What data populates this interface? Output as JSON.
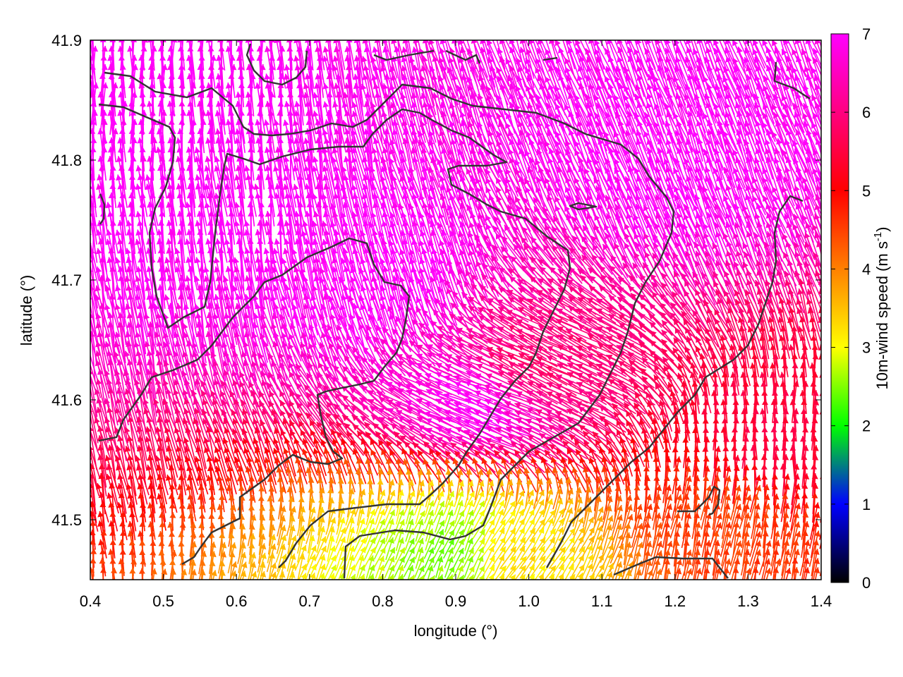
{
  "chart_data": {
    "type": "vector field",
    "xlabel": "longitude (°)",
    "ylabel": "latitude (°)",
    "colorbar_label": "10m-wind speed (m s",
    "colorbar_label_exp": "-1",
    "colorbar_label_end": ")",
    "xlim": [
      0.4,
      1.4
    ],
    "ylim": [
      41.45,
      41.9
    ],
    "x_ticks": [
      0.4,
      0.5,
      0.6,
      0.7,
      0.8,
      0.9,
      1.0,
      1.1,
      1.2,
      1.3,
      1.4
    ],
    "x_tick_labels": [
      "0.4",
      "0.5",
      "0.6",
      "0.7",
      "0.8",
      "0.9",
      "1.0",
      "1.1",
      "1.2",
      "1.3",
      "1.4"
    ],
    "y_ticks": [
      41.5,
      41.6,
      41.7,
      41.8,
      41.9
    ],
    "y_tick_labels": [
      "41.5",
      "41.6",
      "41.7",
      "41.8",
      "41.9"
    ],
    "colorbar_range": [
      0,
      7
    ],
    "colorbar_ticks": [
      0,
      1,
      2,
      3,
      4,
      5,
      6,
      7
    ],
    "colorbar_tick_labels": [
      "0",
      "1",
      "2",
      "3",
      "4",
      "5",
      "6",
      "7"
    ],
    "colormap": [
      "#000000",
      "#0000ff",
      "#00ff00",
      "#ffff00",
      "#ff8000",
      "#ff0000",
      "#ff00ff"
    ],
    "contour_color": "#333333",
    "grid": false,
    "wind_samples": [
      {
        "lon": 0.45,
        "lat": 41.85,
        "u": 0.0,
        "v": 1.0,
        "speed": 7.0
      },
      {
        "lon": 0.6,
        "lat": 41.75,
        "u": -0.1,
        "v": 1.0,
        "speed": 7.0
      },
      {
        "lon": 0.8,
        "lat": 41.7,
        "u": -0.3,
        "v": 1.0,
        "speed": 7.0
      },
      {
        "lon": 0.95,
        "lat": 41.6,
        "u": -1.0,
        "v": 0.4,
        "speed": 7.0
      },
      {
        "lon": 1.0,
        "lat": 41.62,
        "u": -1.0,
        "v": 0.5,
        "speed": 5.8
      },
      {
        "lon": 1.2,
        "lat": 41.8,
        "u": -0.4,
        "v": 1.0,
        "speed": 7.0
      },
      {
        "lon": 1.33,
        "lat": 41.55,
        "u": 0.0,
        "v": 1.0,
        "speed": 5.5
      },
      {
        "lon": 1.28,
        "lat": 41.5,
        "u": 0.2,
        "v": 1.0,
        "speed": 4.5
      },
      {
        "lon": 0.95,
        "lat": 41.47,
        "u": 0.6,
        "v": 0.8,
        "speed": 3.5
      },
      {
        "lon": 0.92,
        "lat": 41.47,
        "u": 0.3,
        "v": 0.9,
        "speed": 2.2
      }
    ]
  }
}
